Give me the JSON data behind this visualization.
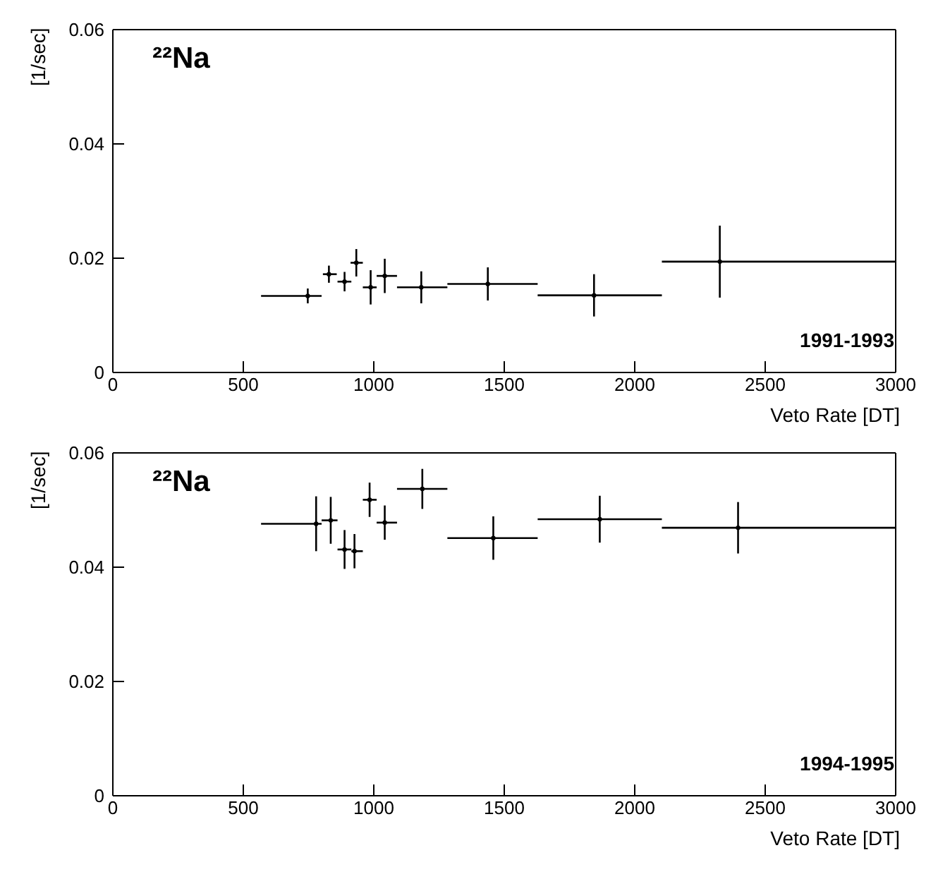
{
  "chart_data": [
    {
      "type": "scatter",
      "xlabel": "Veto Rate [DT]",
      "ylabel": "[1/sec]",
      "annotations": [
        "²²Na",
        "1991-1993"
      ],
      "grid": false,
      "legend": false,
      "xlim": [
        0,
        3000
      ],
      "xticks": [
        0,
        500,
        1000,
        1500,
        2000,
        2500,
        3000
      ],
      "ylim": [
        0,
        0.06
      ],
      "yticks": [
        0,
        0.02,
        0.04,
        0.06
      ],
      "series": [
        {
          "color": "#000000",
          "x": [
            747,
            828,
            888,
            933,
            988,
            1042,
            1182,
            1437,
            1844,
            2326
          ],
          "values": [
            0.0134,
            0.0172,
            0.0159,
            0.0192,
            0.0149,
            0.0169,
            0.0149,
            0.0155,
            0.0135,
            0.0194
          ],
          "errors": [
            0.0013,
            0.0015,
            0.0017,
            0.0024,
            0.003,
            0.003,
            0.0028,
            0.0029,
            0.0037,
            0.0063
          ],
          "xerrors": [
            [
              568,
              800
            ],
            [
              805,
              858
            ],
            [
              861,
              914
            ],
            [
              911,
              958
            ],
            [
              958,
              1011
            ],
            [
              1011,
              1089
            ],
            [
              1089,
              1282
            ],
            [
              1282,
              1628
            ],
            [
              1628,
              2104
            ],
            [
              2104,
              3000
            ]
          ]
        }
      ]
    },
    {
      "type": "scatter",
      "xlabel": "Veto Rate [DT]",
      "ylabel": "[1/sec]",
      "annotations": [
        "²²Na",
        "1994-1995"
      ],
      "grid": false,
      "legend": false,
      "xlim": [
        0,
        3000
      ],
      "xticks": [
        0,
        500,
        1000,
        1500,
        2000,
        2500,
        3000
      ],
      "ylim": [
        0,
        0.06
      ],
      "yticks": [
        0,
        0.02,
        0.04,
        0.06
      ],
      "series": [
        {
          "color": "#000000",
          "x": [
            779,
            835,
            888,
            926,
            984,
            1042,
            1186,
            1458,
            1866,
            2396
          ],
          "values": [
            0.0476,
            0.0482,
            0.0431,
            0.0428,
            0.0518,
            0.0478,
            0.0537,
            0.0451,
            0.0484,
            0.0469
          ],
          "errors": [
            0.0048,
            0.0041,
            0.0034,
            0.003,
            0.003,
            0.003,
            0.0035,
            0.0038,
            0.0041,
            0.0045
          ],
          "xerrors": [
            [
              568,
              800
            ],
            [
              800,
              861
            ],
            [
              861,
              914
            ],
            [
              914,
              958
            ],
            [
              958,
              1011
            ],
            [
              1011,
              1089
            ],
            [
              1089,
              1282
            ],
            [
              1282,
              1628
            ],
            [
              1628,
              2104
            ],
            [
              2104,
              3000
            ]
          ]
        }
      ]
    }
  ]
}
